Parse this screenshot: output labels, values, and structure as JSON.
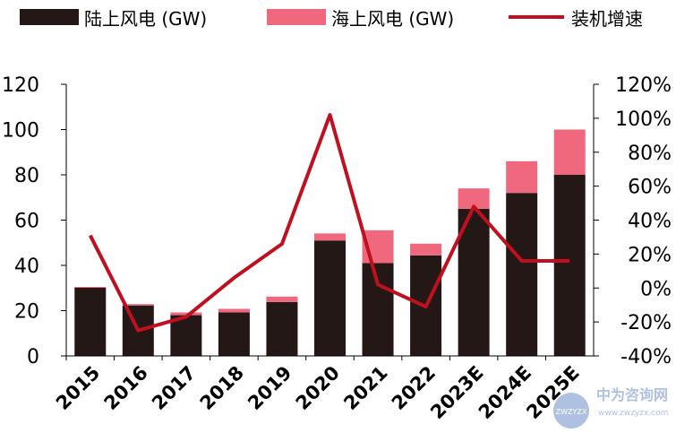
{
  "legend": {
    "onshore": "陆上风电 (GW)",
    "offshore": "海上风电 (GW)",
    "growth": "装机增速"
  },
  "colors": {
    "onshore": "#231815",
    "offshore": "#F0687D",
    "growth": "#C00F1E"
  },
  "watermark": {
    "text": "中为咨询网",
    "url": "www.zwzyzx.com",
    "badge": "ZWZYZX"
  },
  "chart_data": {
    "type": "bar",
    "stacked": true,
    "categories": [
      "2015",
      "2016",
      "2017",
      "2018",
      "2019",
      "2020",
      "2021",
      "2022",
      "2023E",
      "2024E",
      "2025E"
    ],
    "series": [
      {
        "name": "陆上风电 (GW)",
        "axis": "left",
        "values": [
          30.1,
          22.3,
          18.0,
          19.2,
          23.8,
          51.0,
          41.0,
          44.4,
          65.0,
          72.0,
          80.0
        ]
      },
      {
        "name": "海上风电 (GW)",
        "axis": "left",
        "values": [
          0.4,
          0.6,
          1.2,
          1.6,
          2.4,
          3.1,
          14.5,
          5.2,
          9.0,
          14.0,
          20.0
        ]
      },
      {
        "name": "装机增速",
        "type": "line",
        "axis": "right",
        "unit": "%",
        "values": [
          31,
          -25,
          -17,
          6,
          26,
          102,
          2,
          -11,
          48,
          16,
          16
        ]
      }
    ],
    "ylim": [
      0,
      120
    ],
    "yticks": [
      0,
      20,
      40,
      60,
      80,
      100,
      120
    ],
    "y2lim": [
      -40,
      120
    ],
    "y2ticks": [
      "-40%",
      "-20%",
      "0%",
      "20%",
      "40%",
      "60%",
      "80%",
      "100%",
      "120%"
    ],
    "legend_position": "top",
    "grid": false
  }
}
